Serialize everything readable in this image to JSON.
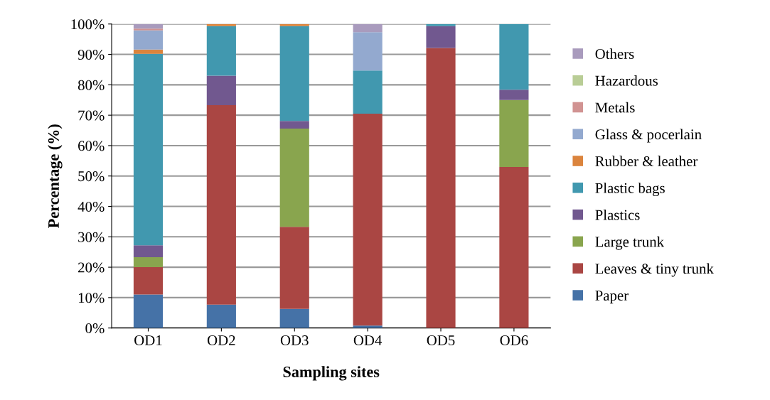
{
  "chart_data": {
    "type": "bar",
    "stacked": true,
    "xlabel": "Sampling sites",
    "ylabel": "Percentage (%)",
    "categories": [
      "OD1",
      "OD2",
      "OD3",
      "OD4",
      "OD5",
      "OD6"
    ],
    "series": [
      {
        "name": "Paper",
        "color": "#4572a7",
        "values": [
          11,
          7.7,
          6.3,
          0.8,
          0,
          0
        ]
      },
      {
        "name": "Leaves & tiny trunk",
        "color": "#aa4643",
        "values": [
          9,
          65.6,
          27,
          69.7,
          92.1,
          53
        ]
      },
      {
        "name": "Large trunk",
        "color": "#89a54e",
        "values": [
          3.3,
          0,
          32.3,
          0,
          0,
          22
        ]
      },
      {
        "name": "Plastics",
        "color": "#71588f",
        "values": [
          3.9,
          9.7,
          2.5,
          0,
          7.2,
          3.4
        ]
      },
      {
        "name": "Plastic bags",
        "color": "#4198af",
        "values": [
          63,
          16.3,
          31.2,
          14.2,
          0.7,
          21.6
        ]
      },
      {
        "name": "Rubber & leather",
        "color": "#db843d",
        "values": [
          1.4,
          0.7,
          0.7,
          0,
          0,
          0
        ]
      },
      {
        "name": "Glass & pocerlain",
        "color": "#93a9cf",
        "values": [
          6.3,
          0,
          0,
          12.6,
          0,
          0
        ]
      },
      {
        "name": "Metals",
        "color": "#d19392",
        "values": [
          0.6,
          0,
          0,
          0,
          0,
          0
        ]
      },
      {
        "name": "Hazardous",
        "color": "#b9cd96",
        "values": [
          0,
          0,
          0,
          0,
          0,
          0
        ]
      },
      {
        "name": "Others",
        "color": "#a99bbd",
        "values": [
          1.5,
          0,
          0,
          2.7,
          0,
          0
        ]
      }
    ],
    "ylim": [
      0,
      100
    ],
    "yticks": [
      {
        "value": 0,
        "label": "0%"
      },
      {
        "value": 10,
        "label": "10%"
      },
      {
        "value": 20,
        "label": "20%"
      },
      {
        "value": 30,
        "label": "30%"
      },
      {
        "value": 40,
        "label": "40%"
      },
      {
        "value": 50,
        "label": "50%"
      },
      {
        "value": 60,
        "label": "60%"
      },
      {
        "value": 70,
        "label": "70%"
      },
      {
        "value": 80,
        "label": "80%"
      },
      {
        "value": 90,
        "label": "90%"
      },
      {
        "value": 100,
        "label": "100%"
      }
    ],
    "grid": "y",
    "legend": "right"
  }
}
